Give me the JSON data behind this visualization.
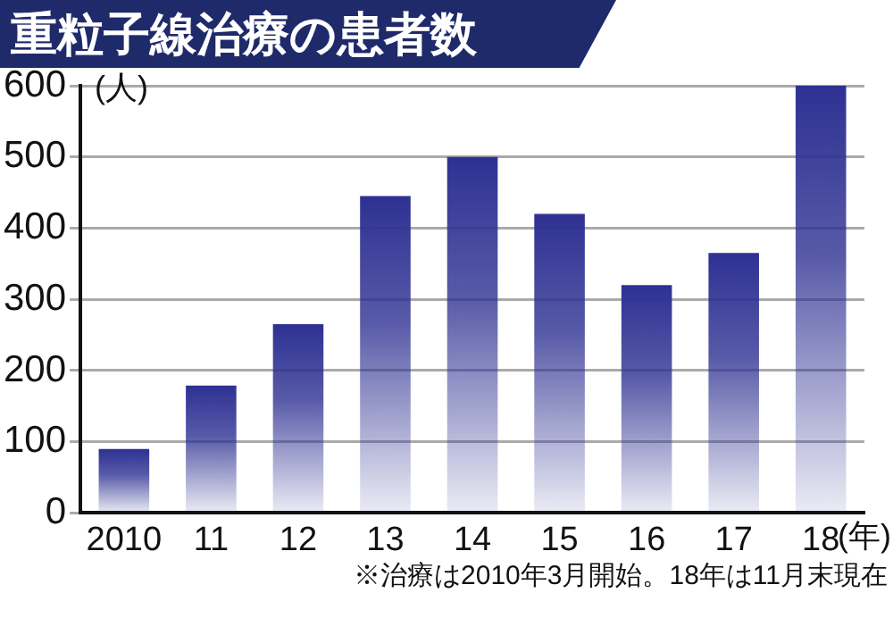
{
  "chart_data": {
    "type": "bar",
    "title": "重粒子線治療の患者数",
    "ylabel": "(人)",
    "xlabel": "(年)",
    "categories": [
      "2010",
      "11",
      "12",
      "13",
      "14",
      "15",
      "16",
      "17",
      "18"
    ],
    "values": [
      90,
      179,
      265,
      445,
      500,
      420,
      320,
      365,
      600
    ],
    "color": "#2e3192",
    "ylim": [
      0,
      600
    ],
    "yticks": [
      0,
      100,
      200,
      300,
      400,
      500,
      600
    ],
    "grid": "y",
    "legend": false,
    "annotations": [
      "※治療は2010年3月開始。18年は11月末現在"
    ]
  }
}
